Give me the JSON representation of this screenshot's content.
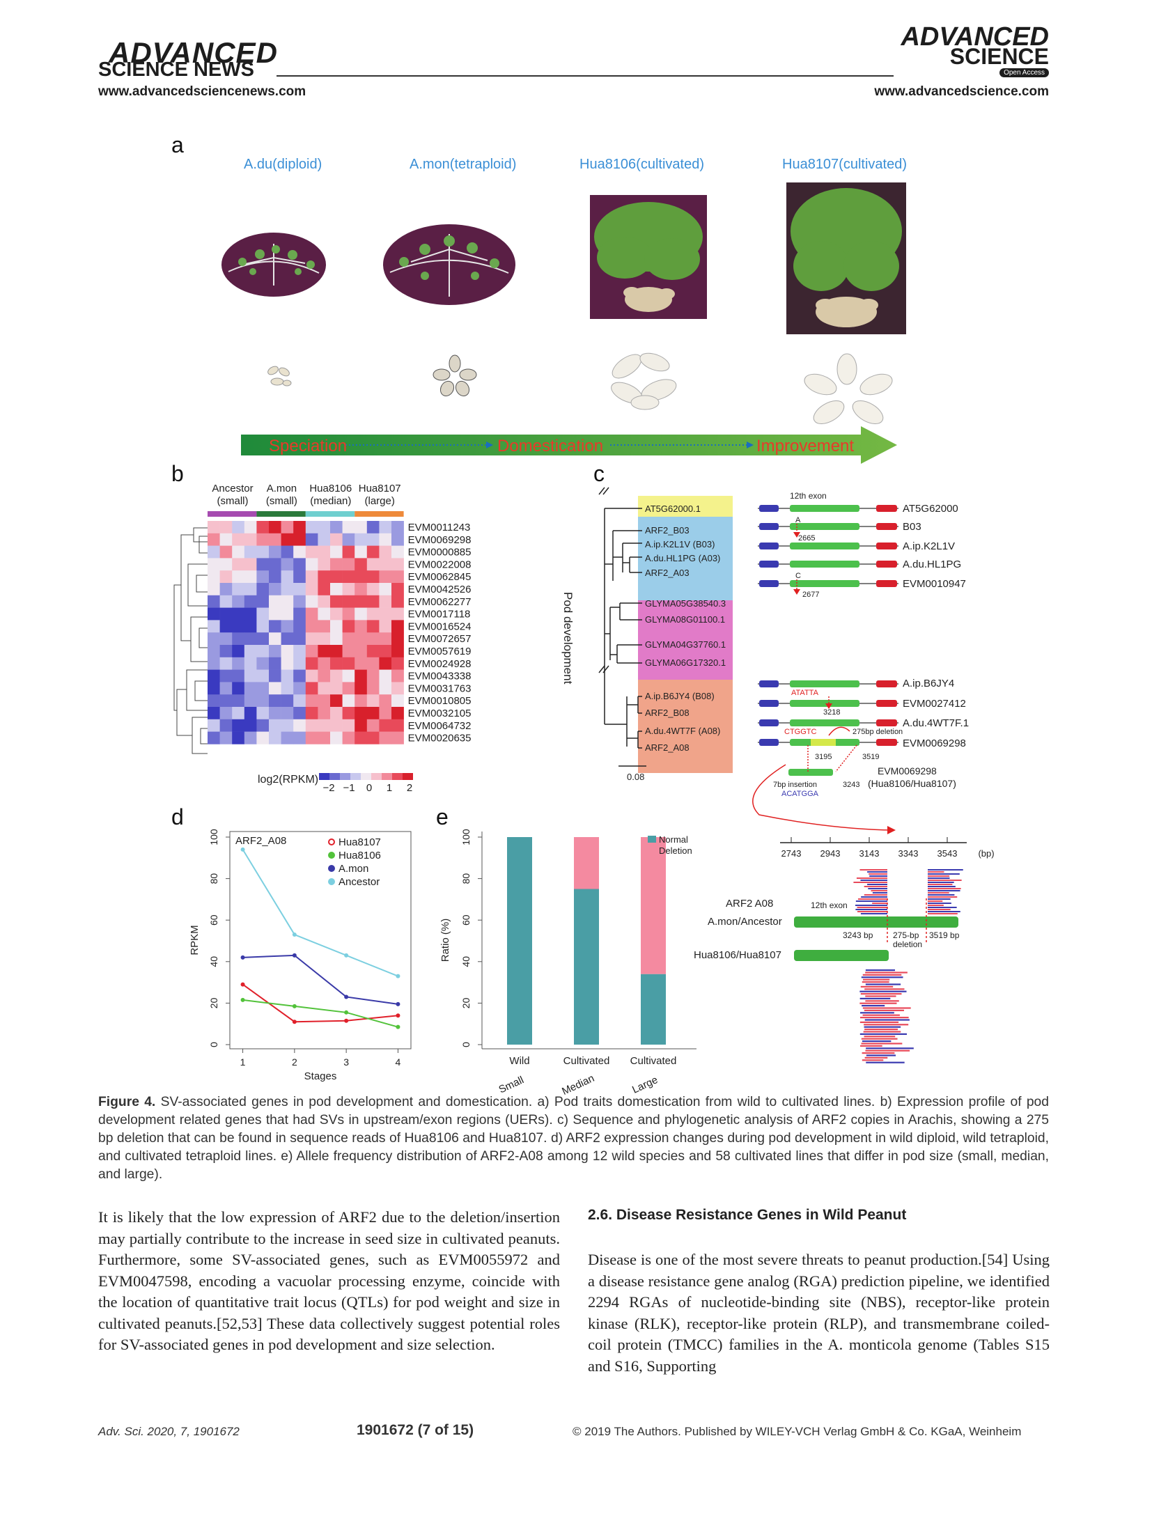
{
  "header": {
    "left_logo_line1": "ADVANCED",
    "left_logo_line2": "SCIENCE NEWS",
    "left_url": "www.advancedsciencenews.com",
    "right_logo_line1": "ADVANCED",
    "right_logo_line2": "SCIENCE",
    "right_badge": "Open Access",
    "right_url": "www.advancedscience.com"
  },
  "panel_a": {
    "letter": "a",
    "species": [
      "A.du(diploid)",
      "A.mon(tetraploid)",
      "Hua8106(cultivated)",
      "Hua8107(cultivated)"
    ],
    "stages": [
      "Speciation",
      "Domestication",
      "Improvement"
    ]
  },
  "panel_b": {
    "letter": "b",
    "groups": [
      {
        "name": "Ancestor",
        "size": "(small)",
        "color": "#a64bb0"
      },
      {
        "name": "A.mon",
        "size": "(small)",
        "color": "#2b7a3b"
      },
      {
        "name": "Hua8106",
        "size": "(median)",
        "color": "#6fcfcf"
      },
      {
        "name": "Hua8107",
        "size": "(large)",
        "color": "#ee8a3a"
      }
    ],
    "genes": [
      "EVM0011243",
      "EVM0069298",
      "EVM0000885",
      "EVM0022008",
      "EVM0062845",
      "EVM0042526",
      "EVM0062277",
      "EVM0017118",
      "EVM0016524",
      "EVM0072657",
      "EVM0057619",
      "EVM0024928",
      "EVM0043338",
      "EVM0031763",
      "EVM0010805",
      "EVM0032105",
      "EVM0064732",
      "EVM0020635"
    ],
    "side_label": "Pod development",
    "legend_label": "log2(RPKM)",
    "legend_ticks": [
      "−2",
      "−1",
      "0",
      "1",
      "2"
    ]
  },
  "panel_c": {
    "letter": "c",
    "exon_label": "12th exon",
    "tree_leaves": [
      "AT5G62000.1",
      "ARF2_B03",
      "A.ip.K2L1V (B03)",
      "A.du.HL1PG (A03)",
      "ARF2_A03",
      "GLYMA05G38540.3",
      "GLYMA08G01100.1",
      "GLYMA04G37760.1",
      "GLYMA06G17320.1",
      "A.ip.B6JY4 (B08)",
      "ARF2_B08",
      "A.du.4WT7F (A08)",
      "ARF2_A08"
    ],
    "gene_labels": [
      "AT5G62000",
      "B03",
      "A.ip.K2L1V",
      "A.du.HL1PG",
      "EVM0010947",
      "A.ip.B6JY4",
      "EVM0027412",
      "A.du.4WT7F.1",
      "EVM0069298"
    ],
    "annotations": {
      "snp_a": "A",
      "pos_2665": "2665",
      "snp_c": "C",
      "pos_2677": "2677",
      "atatta": "ATATTA",
      "pos_3218": "3218",
      "ctggtc": "CTGGTC",
      "deletion": "275bp deletion",
      "pos_3195": "3195",
      "pos_3519": "3519",
      "bottom_gene": "EVM0069298",
      "bottom_lines": "(Hua8106/Hua8107)",
      "insertion": "7bp insertion",
      "acatgga": "ACATGGA",
      "pos_3243": "3243"
    },
    "scale": "0.08"
  },
  "panel_reads": {
    "axis_ticks": [
      "2743",
      "2943",
      "3143",
      "3343",
      "3543",
      "(bp)"
    ],
    "gene": "ARF2 A08",
    "exon": "12th exon",
    "row1": "A.mon/Ancestor",
    "row2": "Hua8106/Hua8107",
    "label_3243": "3243 bp",
    "label_del1": "275-bp",
    "label_del2": "deletion",
    "label_3519": "3519 bp"
  },
  "chart_data": [
    {
      "type": "line",
      "panel": "d",
      "title": "ARF2_A08",
      "xlabel": "Stages",
      "ylabel": "RPKM",
      "x": [
        1,
        2,
        3,
        4
      ],
      "xticks": [
        "1",
        "2",
        "3",
        "4"
      ],
      "yticks": [
        "0",
        "20",
        "40",
        "60",
        "80",
        "100"
      ],
      "ylim": [
        0,
        100
      ],
      "series": [
        {
          "name": "Hua8107",
          "color": "#e0202a",
          "values": [
            29,
            11,
            11.5,
            14
          ]
        },
        {
          "name": "Hua8106",
          "color": "#52c23a",
          "values": [
            21.5,
            18.5,
            15.5,
            8.5
          ]
        },
        {
          "name": "A.mon",
          "color": "#3a3aa8",
          "values": [
            42,
            43,
            23,
            19.5
          ]
        },
        {
          "name": "Ancestor",
          "color": "#7ccfe0",
          "values": [
            94,
            53,
            43,
            33
          ]
        }
      ],
      "legend": "top-right"
    },
    {
      "type": "bar",
      "panel": "e",
      "stacked": true,
      "ylabel": "Ratio (%)",
      "categories": [
        "Wild",
        "Cultivated",
        "Cultivated"
      ],
      "category_sub": [
        "Small",
        "Median",
        "Large"
      ],
      "yticks": [
        "0",
        "20",
        "40",
        "60",
        "80",
        "100"
      ],
      "ylim": [
        0,
        100
      ],
      "series": [
        {
          "name": "Normal",
          "color": "#4a9ea5",
          "values": [
            100,
            75,
            34
          ]
        },
        {
          "name": "Deletion",
          "color": "#f48aa0",
          "values": [
            0,
            25,
            66
          ]
        }
      ],
      "legend": "top-right"
    }
  ],
  "caption": {
    "label": "Figure 4.",
    "text": "SV-associated genes in pod development and domestication. a) Pod traits domestication from wild to cultivated lines. b) Expression profile of pod development related genes that had SVs in upstream/exon regions (UERs). c) Sequence and phylogenetic analysis of ARF2 copies in Arachis, showing a 275 bp deletion that can be found in sequence reads of Hua8106 and Hua8107. d) ARF2 expression changes during pod development in wild diploid, wild tetraploid, and cultivated tetraploid lines. e) Allele frequency distribution of ARF2-A08 among 12 wild species and 58 cultivated lines that differ in pod size (small, median, and large)."
  },
  "body": {
    "left_paragraph": "It is likely that the low expression of ARF2 due to the deletion/insertion may partially contribute to the increase in seed size in cultivated peanuts. Furthermore, some SV-associated genes, such as EVM0055972 and EVM0047598, encoding a vacuolar processing enzyme, coincide with the location of quantitative trait locus (QTLs) for pod weight and size in cultivated peanuts.[52,53] These data collectively suggest potential roles for SV-associated genes in pod development and size selection.",
    "section_title": "2.6. Disease Resistance Genes in Wild Peanut",
    "right_paragraph": "Disease is one of the most severe threats to peanut production.[54] Using a disease resistance gene analog (RGA) prediction pipeline, we identified 2294 RGAs of nucleotide-binding site (NBS), receptor-like protein kinase (RLK), receptor-like protein (RLP), and transmembrane coiled-coil protein (TMCC) families in the A. monticola genome (Tables S15 and S16, Supporting"
  },
  "footer": {
    "journal": "Adv. Sci. 2020, 7, 1901672",
    "page": "1901672  (7 of 15)",
    "copyright": "© 2019 The Authors. Published by WILEY-VCH Verlag GmbH & Co. KGaA, Weinheim"
  }
}
